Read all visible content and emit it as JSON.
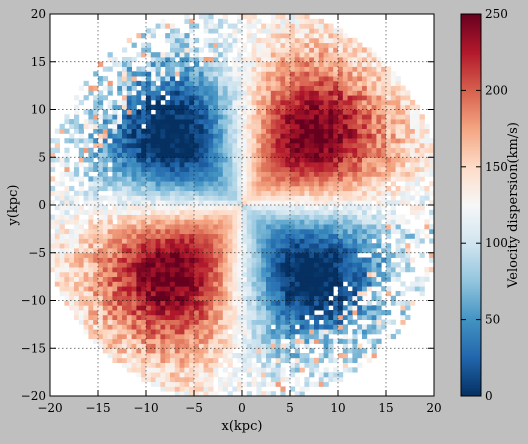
{
  "chart_data": {
    "type": "heatmap",
    "title": "",
    "xlabel": "x(kpc)",
    "ylabel": "y(kpc)",
    "xlim": [
      -20,
      20
    ],
    "ylim": [
      -20,
      20
    ],
    "xticks": [
      -20,
      -15,
      -10,
      -5,
      0,
      5,
      10,
      15,
      20
    ],
    "yticks": [
      -20,
      -15,
      -10,
      -5,
      0,
      5,
      10,
      15,
      20
    ],
    "grid": true,
    "colorbar": {
      "label": "Velocity dispersion(km/s)",
      "range": [
        0,
        250
      ],
      "ticks": [
        0,
        50,
        100,
        150,
        200,
        250
      ],
      "colormap": "RdBu_r",
      "stops": [
        "#053061",
        "#2166ac",
        "#4393c3",
        "#92c5de",
        "#d1e5f0",
        "#f7f7f7",
        "#fddbc7",
        "#f4a582",
        "#d6604d",
        "#b2182b",
        "#67001f"
      ]
    },
    "grid_size": 80,
    "pattern": {
      "description": "quadrupole velocity dispersion map",
      "high_lobes": [
        {
          "x": 8,
          "y": 8,
          "peak": 240
        },
        {
          "x": -8,
          "y": -8,
          "peak": 235
        }
      ],
      "low_lobes": [
        {
          "x": -8,
          "y": 8,
          "value": 60
        },
        {
          "x": 8,
          "y": -8,
          "value": 60
        }
      ],
      "center_value": 120
    }
  }
}
